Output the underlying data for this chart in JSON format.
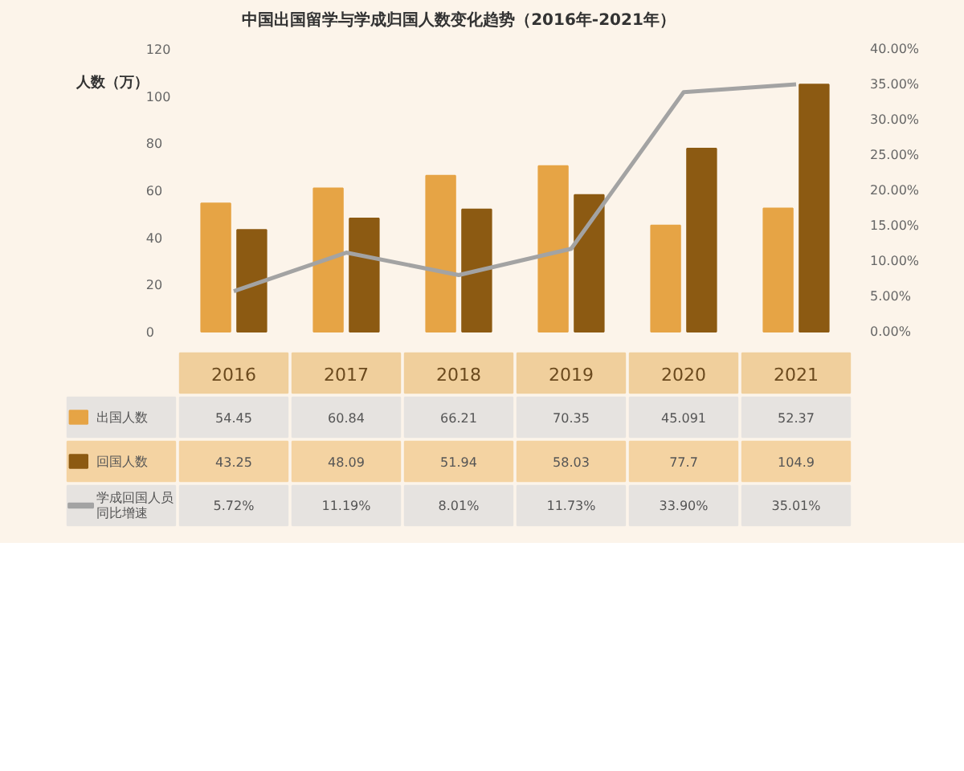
{
  "chart_data": {
    "type": "bar",
    "title": "中国出国留学与学成归国人数变化趋势（2016年-2021年）",
    "ylabel": "人数（万）",
    "categories": [
      "2016",
      "2017",
      "2018",
      "2019",
      "2020",
      "2021"
    ],
    "series": [
      {
        "name": "出国人数",
        "color": "#e6a445",
        "values": [
          54.45,
          60.84,
          66.21,
          70.35,
          45.091,
          52.37
        ]
      },
      {
        "name": "回国人数",
        "color": "#8c5a12",
        "values": [
          43.25,
          48.09,
          51.94,
          58.03,
          77.7,
          104.9
        ]
      },
      {
        "name": "学成回国人员同比增速",
        "type": "line",
        "axis": "y2",
        "color": "#a3a3a3",
        "values": [
          5.72,
          11.19,
          8.01,
          11.73,
          33.9,
          35.01
        ],
        "value_labels": [
          "5.72%",
          "11.19%",
          "8.01%",
          "11.73%",
          "33.90%",
          "35.01%"
        ]
      }
    ],
    "ylim": [
      0,
      120
    ],
    "yticks": [
      0,
      20,
      40,
      60,
      80,
      100,
      120
    ],
    "y2lim": [
      0,
      40
    ],
    "y2ticks": [
      {
        "value": 0,
        "label": "0.00%"
      },
      {
        "value": 5,
        "label": "5.00%"
      },
      {
        "value": 10,
        "label": "10.00%"
      },
      {
        "value": 15,
        "label": "15.00%"
      },
      {
        "value": 20,
        "label": "20.00%"
      },
      {
        "value": 25,
        "label": "25.00%"
      },
      {
        "value": 30,
        "label": "30.00%"
      },
      {
        "value": 35,
        "label": "35.00%"
      },
      {
        "value": 40,
        "label": "40.00%"
      }
    ],
    "data_labels": true,
    "legend": "bottom left",
    "marker": "none",
    "line_style": "solid"
  }
}
